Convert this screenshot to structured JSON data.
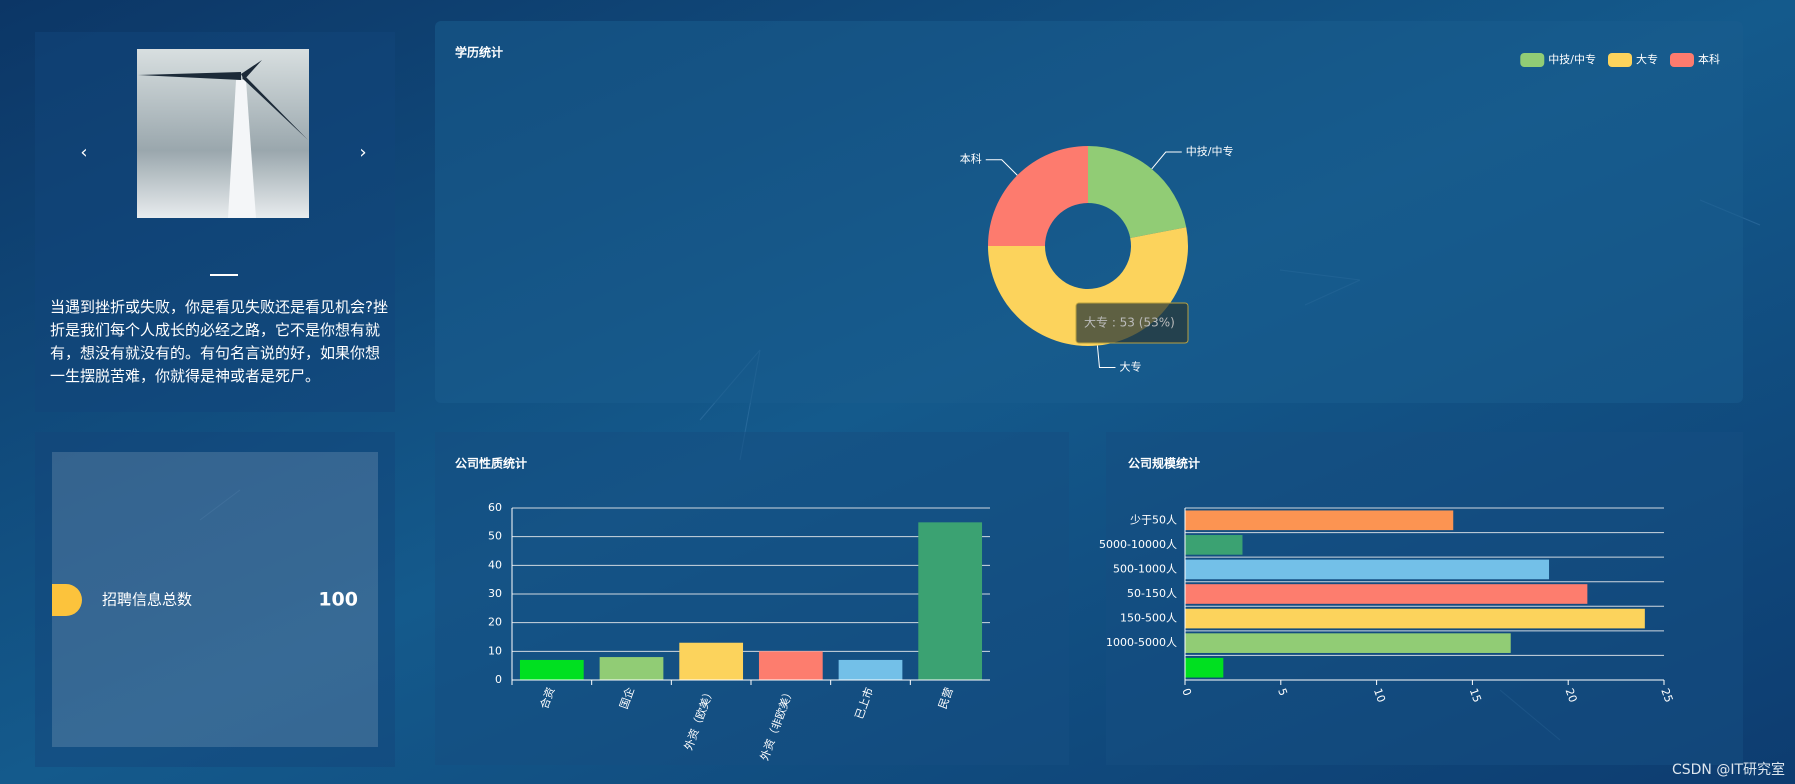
{
  "carousel": {
    "prev": "‹",
    "next": "›",
    "quote": "当遇到挫折或失败，你是看见失败还是看见机会?挫折是我们每个人成长的必经之路，它不是你想有就有，想没有就没有的。有句名言说的好，如果你想一生摆脱苦难，你就得是神或者是死尸。"
  },
  "kpi": {
    "label": "招聘信息总数",
    "value": 100
  },
  "watermark": "CSDN @IT研究室",
  "chart_data": [
    {
      "type": "donut",
      "title": "学历统计",
      "categories": [
        "中技/中专",
        "大专",
        "本科"
      ],
      "values": [
        22,
        53,
        25
      ],
      "colors": [
        "#91cc75",
        "#fcd35c",
        "#fd7b6e"
      ],
      "legend": "top-right",
      "tooltip": "大专 : 53 (53%)"
    },
    {
      "type": "bar",
      "title": "公司性质统计",
      "categories": [
        "合资",
        "国企",
        "外资（欧美）",
        "外资（非欧美）",
        "已上市",
        "民营"
      ],
      "values": [
        7,
        8,
        13,
        10,
        7,
        55
      ],
      "colors": [
        "#00e020",
        "#91cc75",
        "#fcd35c",
        "#fd7d6e",
        "#73c0e8",
        "#3ba272"
      ],
      "ylim": [
        0,
        60
      ],
      "yticks": [
        0,
        10,
        20,
        30,
        40,
        50,
        60
      ],
      "grid": true
    },
    {
      "type": "hbar",
      "title": "公司规模统计",
      "categories": [
        "少于50人",
        "5000-10000人",
        "500-1000人",
        "50-150人",
        "150-500人",
        "1000-5000人",
        null
      ],
      "values": [
        14,
        3,
        19,
        21,
        24,
        17,
        2
      ],
      "colors": [
        "#fc9452",
        "#3ba272",
        "#73c0e8",
        "#fd7d6e",
        "#fcd35c",
        "#91cc75",
        "#00e020"
      ],
      "xlim": [
        0,
        25
      ],
      "xticks": [
        0,
        5,
        10,
        15,
        20,
        25
      ]
    }
  ]
}
